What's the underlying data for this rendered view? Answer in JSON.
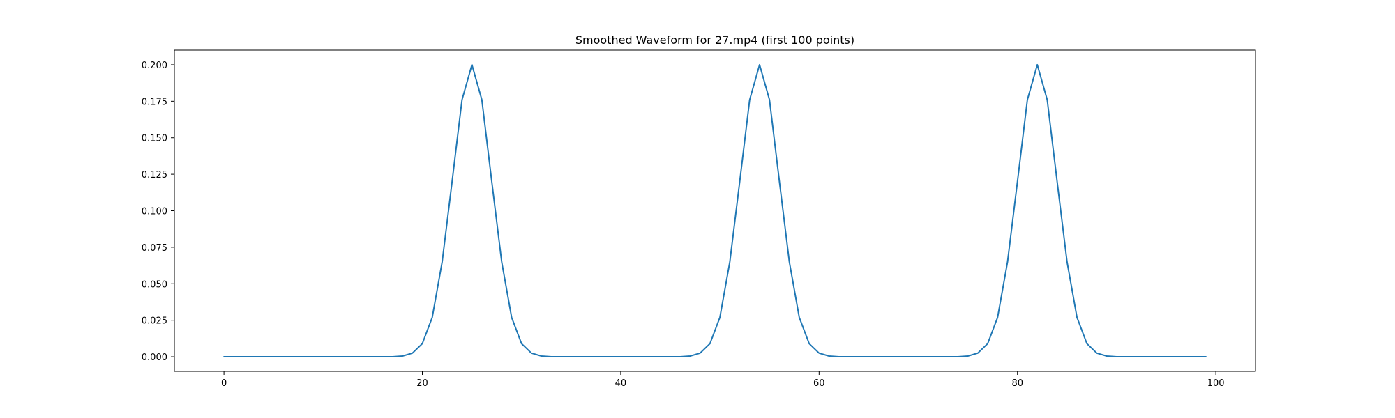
{
  "chart_data": {
    "type": "line",
    "title": "Smoothed Waveform for 27.mp4 (first 100 points)",
    "xlabel": "",
    "ylabel": "",
    "xlim": [
      -5,
      104
    ],
    "ylim": [
      -0.01,
      0.21
    ],
    "grid": false,
    "xticks": [
      0,
      20,
      40,
      60,
      80,
      100
    ],
    "xtick_labels": [
      "0",
      "20",
      "40",
      "60",
      "80",
      "100"
    ],
    "yticks": [
      0.0,
      0.025,
      0.05,
      0.075,
      0.1,
      0.125,
      0.15,
      0.175,
      0.2
    ],
    "ytick_labels": [
      "0.000",
      "0.025",
      "0.050",
      "0.075",
      "0.100",
      "0.125",
      "0.150",
      "0.175",
      "0.200"
    ],
    "series": [
      {
        "color": "#1f77b4",
        "x": [
          0,
          1,
          2,
          3,
          4,
          5,
          6,
          7,
          8,
          9,
          10,
          11,
          12,
          13,
          14,
          15,
          16,
          17,
          18,
          19,
          20,
          21,
          22,
          23,
          24,
          25,
          26,
          27,
          28,
          29,
          30,
          31,
          32,
          33,
          34,
          35,
          36,
          37,
          38,
          39,
          40,
          41,
          42,
          43,
          44,
          45,
          46,
          47,
          48,
          49,
          50,
          51,
          52,
          53,
          54,
          55,
          56,
          57,
          58,
          59,
          60,
          61,
          62,
          63,
          64,
          65,
          66,
          67,
          68,
          69,
          70,
          71,
          72,
          73,
          74,
          75,
          76,
          77,
          78,
          79,
          80,
          81,
          82,
          83,
          84,
          85,
          86,
          87,
          88,
          89,
          90,
          91,
          92,
          93,
          94,
          95,
          96,
          97,
          98,
          99
        ],
        "values": [
          0,
          0,
          0,
          0,
          0,
          0,
          0,
          0,
          0,
          0,
          0,
          0,
          0,
          0,
          0,
          0,
          0,
          0,
          0.0005,
          0.0025,
          0.009,
          0.027,
          0.065,
          0.12,
          0.176,
          0.2,
          0.176,
          0.12,
          0.065,
          0.027,
          0.009,
          0.0025,
          0.0005,
          0,
          0,
          0,
          0,
          0,
          0,
          0,
          0,
          0,
          0,
          0,
          0,
          0,
          0,
          0.0005,
          0.0025,
          0.009,
          0.027,
          0.065,
          0.12,
          0.176,
          0.2,
          0.176,
          0.12,
          0.065,
          0.027,
          0.009,
          0.0025,
          0.0005,
          0,
          0,
          0,
          0,
          0,
          0,
          0,
          0,
          0,
          0,
          0,
          0,
          0,
          0.0005,
          0.0025,
          0.009,
          0.027,
          0.065,
          0.12,
          0.176,
          0.2,
          0.176,
          0.12,
          0.065,
          0.027,
          0.009,
          0.0025,
          0.0005,
          0,
          0,
          0,
          0,
          0,
          0,
          0,
          0,
          0,
          0
        ]
      }
    ]
  }
}
